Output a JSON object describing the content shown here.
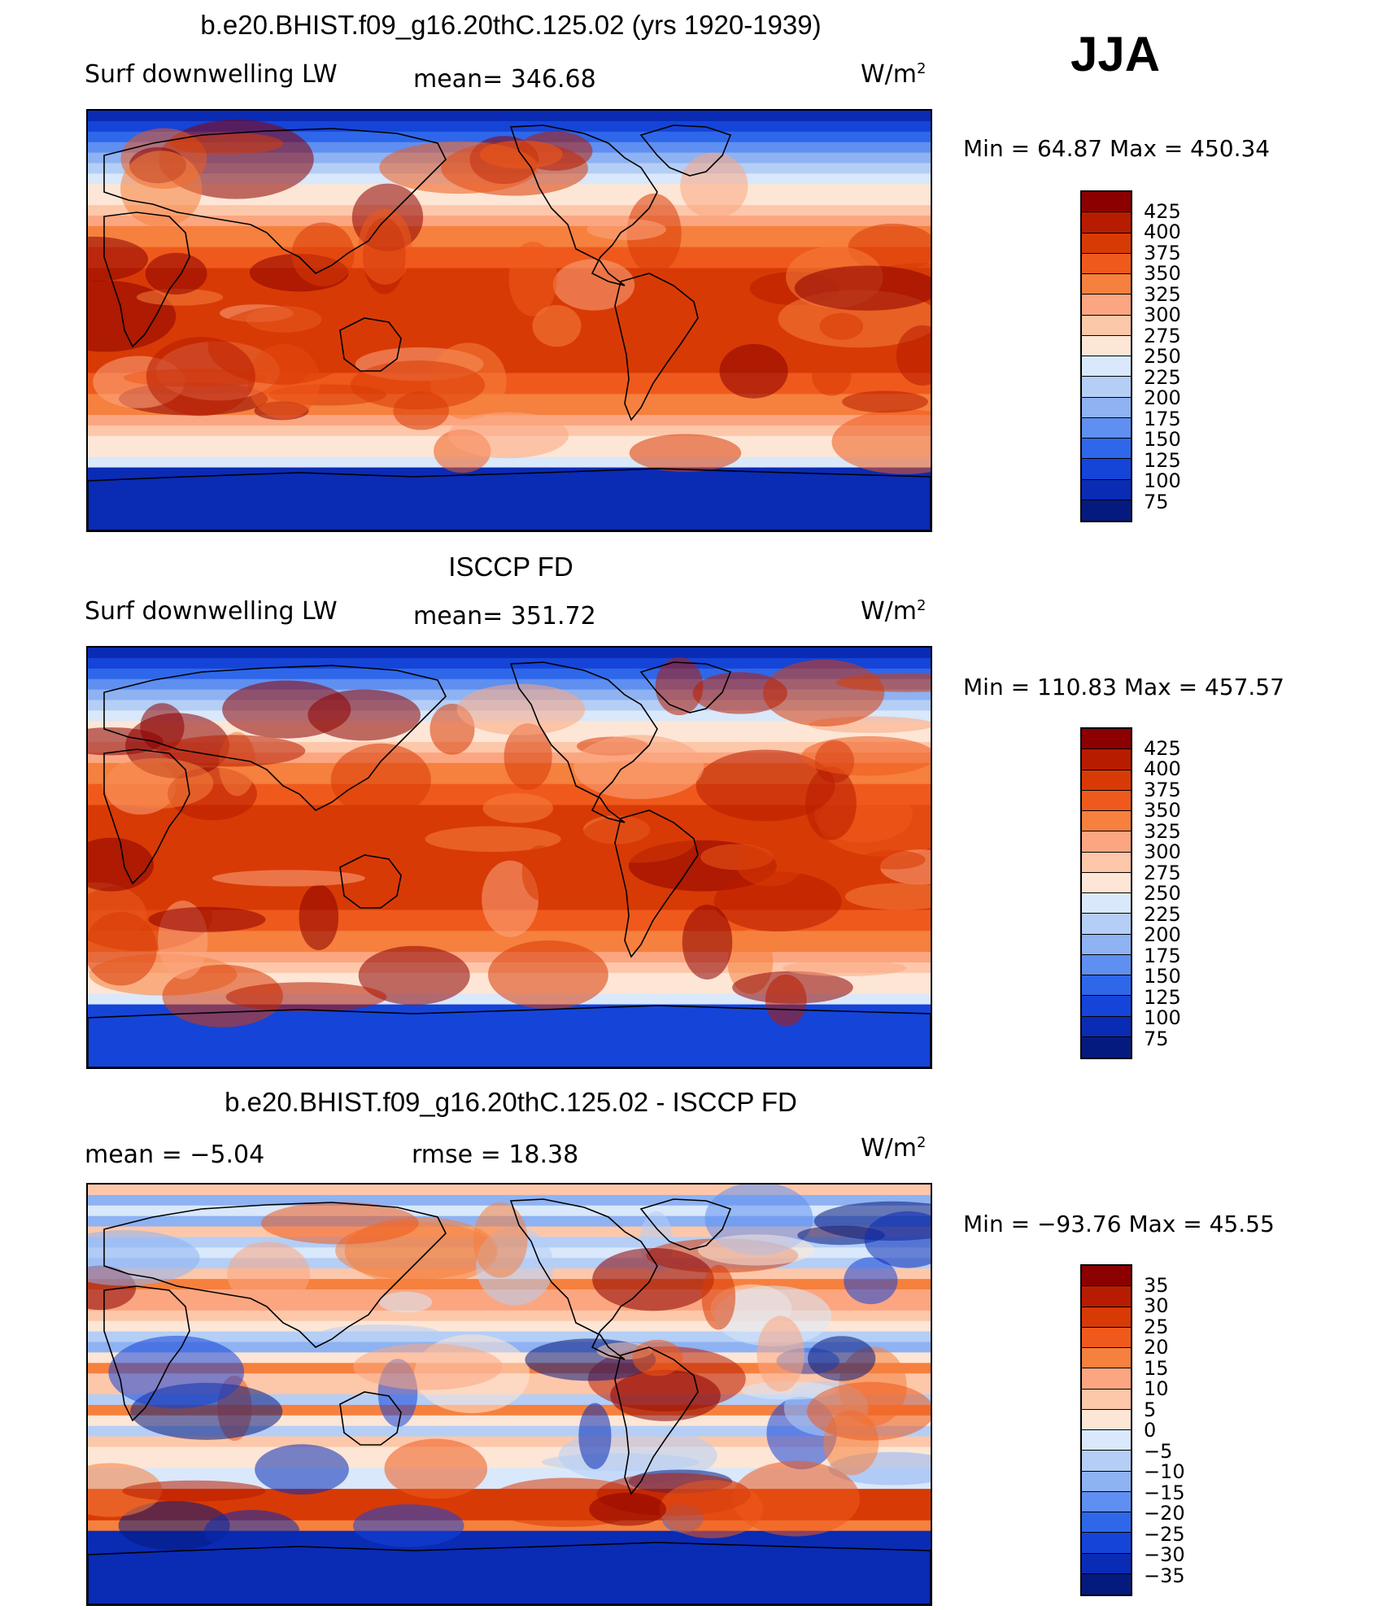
{
  "season": "JJA",
  "panels": [
    {
      "title": "b.e20.BHIST.f09_g16.20thC.125.02 (yrs 1920-1939)",
      "left_label": "Surf  downwelling  LW",
      "center_label": "mean=  346.68",
      "units": "W/m",
      "units_sup": "2",
      "minmax": "Min  =    64.87  Max  =  450.34",
      "colorbar_ticks": [
        "425",
        "400",
        "375",
        "350",
        "325",
        "300",
        "275",
        "250",
        "225",
        "200",
        "175",
        "150",
        "125",
        "100",
        "75"
      ]
    },
    {
      "title": "ISCCP FD",
      "left_label": "Surf  downwelling  LW",
      "center_label": "mean=  351.72",
      "units": "W/m",
      "units_sup": "2",
      "minmax": "Min  =  110.83  Max  =  457.57",
      "colorbar_ticks": [
        "425",
        "400",
        "375",
        "350",
        "325",
        "300",
        "275",
        "250",
        "225",
        "200",
        "175",
        "150",
        "125",
        "100",
        "75"
      ]
    },
    {
      "title": "b.e20.BHIST.f09_g16.20thC.125.02 - ISCCP FD",
      "left_label": "mean  =    −5.04",
      "center_label": "rmse  =    18.38",
      "units": "W/m",
      "units_sup": "2",
      "minmax": "Min  =  −93.76  Max  =    45.55",
      "colorbar_ticks": [
        "35",
        "30",
        "25",
        "20",
        "15",
        "10",
        "5",
        "0",
        "−5",
        "−10",
        "−15",
        "−20",
        "−25",
        "−30",
        "−35"
      ]
    }
  ],
  "colors": {
    "abs_scale": [
      "#8c0000",
      "#b81c00",
      "#d83a06",
      "#ef5a1c",
      "#f6803e",
      "#fba680",
      "#fdc7aa",
      "#fde6d6",
      "#d9e8fa",
      "#b4cef6",
      "#8eb2f2",
      "#5f8ff0",
      "#2e67ea",
      "#1544d8",
      "#0a2bb4",
      "#051a7e"
    ],
    "diff_scale": [
      "#8c0000",
      "#b81c00",
      "#d83a06",
      "#ef5a1c",
      "#f6803e",
      "#fba680",
      "#fdc7aa",
      "#fde6d6",
      "#d9e8fa",
      "#b4cef6",
      "#8eb2f2",
      "#5f8ff0",
      "#2e67ea",
      "#1544d8",
      "#0a2bb4",
      "#051a7e"
    ]
  }
}
